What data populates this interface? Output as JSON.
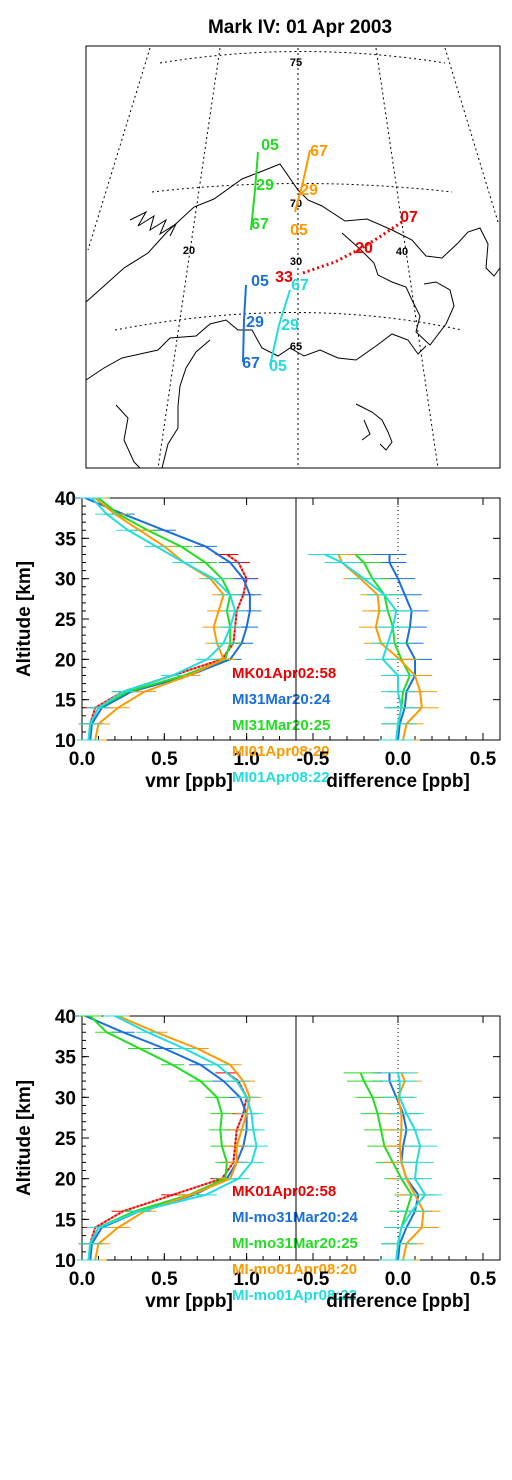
{
  "map": {
    "title": "Mark IV: 01 Apr 2003",
    "grid_labels": [
      "75",
      "70",
      "65",
      "20",
      "30",
      "40"
    ],
    "tracks": [
      {
        "color": "#22dd22",
        "labels": [
          "05",
          "29",
          "67"
        ]
      },
      {
        "color": "#ff9900",
        "labels": [
          "67",
          "29",
          "05"
        ]
      },
      {
        "color": "#ee0000",
        "labels": [
          "07",
          "20",
          "33"
        ]
      },
      {
        "color": "#1a6fdd",
        "labels": [
          "05",
          "29",
          "67"
        ]
      },
      {
        "color": "#22dddd",
        "labels": [
          "67",
          "29",
          "05"
        ]
      }
    ]
  },
  "chart_data": [
    {
      "type": "line",
      "panel": "vmr",
      "xlabel": "vmr [ppb]",
      "ylabel": "Altitude [km]",
      "xlim": [
        0.0,
        1.3
      ],
      "ylim": [
        10,
        40
      ],
      "xticks": [
        "0.0",
        "0.5",
        "1.0"
      ],
      "yticks": [
        "10",
        "15",
        "20",
        "25",
        "30",
        "35",
        "40"
      ],
      "altitude": [
        10,
        12,
        14,
        16,
        18,
        20,
        22,
        24,
        26,
        28,
        30,
        32,
        34,
        36,
        38,
        40
      ],
      "legend": [
        "MK01Apr02:58",
        "MI31Mar20:24",
        "MI31Mar20:25",
        "MI01Apr08:20",
        "MI01Apr08:22"
      ],
      "series": [
        {
          "name": "MK01Apr02:58",
          "color": "#ee0000",
          "altitude": [
            10,
            12,
            14,
            16,
            18,
            20,
            22,
            24,
            26,
            28,
            30,
            32,
            33
          ],
          "values": [
            0.05,
            0.05,
            0.08,
            0.25,
            0.55,
            0.85,
            0.92,
            0.93,
            0.94,
            0.98,
            1.0,
            0.95,
            0.88
          ]
        },
        {
          "name": "MI31Mar20:24",
          "color": "#1a6fdd",
          "altitude": [
            10,
            12,
            14,
            16,
            18,
            20,
            22,
            24,
            26,
            28,
            30,
            32,
            34,
            36,
            38,
            40
          ],
          "values": [
            0.05,
            0.06,
            0.12,
            0.3,
            0.65,
            0.9,
            0.97,
            1.0,
            1.02,
            1.02,
            0.98,
            0.9,
            0.75,
            0.5,
            0.25,
            0.02
          ]
        },
        {
          "name": "MI31Mar20:25",
          "color": "#22dd22",
          "altitude": [
            10,
            12,
            14,
            16,
            18,
            20,
            22,
            24,
            26,
            28,
            30,
            32,
            34,
            36,
            38,
            40
          ],
          "values": [
            0.04,
            0.05,
            0.1,
            0.28,
            0.62,
            0.87,
            0.9,
            0.9,
            0.88,
            0.9,
            0.85,
            0.75,
            0.6,
            0.4,
            0.22,
            0.1
          ]
        },
        {
          "name": "MI01Apr08:20",
          "color": "#ff9900",
          "altitude": [
            10,
            12,
            14,
            16,
            18,
            20,
            22,
            24,
            26,
            28,
            30,
            32,
            34,
            36,
            38,
            40
          ],
          "values": [
            0.08,
            0.1,
            0.22,
            0.38,
            0.65,
            0.86,
            0.82,
            0.8,
            0.83,
            0.86,
            0.78,
            0.62,
            0.5,
            0.35,
            0.2,
            0.08
          ]
        },
        {
          "name": "MI01Apr08:22",
          "color": "#22dddd",
          "altitude": [
            10,
            12,
            14,
            16,
            18,
            20,
            22,
            24,
            26,
            28,
            30,
            32,
            34,
            36,
            38,
            40
          ],
          "values": [
            0.04,
            0.05,
            0.1,
            0.25,
            0.55,
            0.76,
            0.86,
            0.9,
            0.93,
            0.9,
            0.8,
            0.62,
            0.45,
            0.28,
            0.15,
            0.06
          ]
        }
      ]
    },
    {
      "type": "line",
      "panel": "difference",
      "xlabel": "difference [ppb]",
      "xlim": [
        -0.6,
        0.6
      ],
      "ylim": [
        10,
        40
      ],
      "xticks": [
        "-0.5",
        "0.0",
        "0.5"
      ],
      "altitude": [
        10,
        12,
        14,
        16,
        18,
        20,
        22,
        24,
        26,
        28,
        30,
        32,
        33
      ],
      "series": [
        {
          "name": "MI31Mar20:24",
          "color": "#1a6fdd",
          "values": [
            0.0,
            0.01,
            0.04,
            0.05,
            0.1,
            0.1,
            0.05,
            0.07,
            0.08,
            0.04,
            0.0,
            -0.05,
            -0.05
          ]
        },
        {
          "name": "MI31Mar20:25",
          "color": "#22dd22",
          "values": [
            -0.01,
            0.0,
            0.02,
            0.03,
            0.07,
            0.02,
            -0.02,
            -0.03,
            -0.06,
            -0.08,
            -0.15,
            -0.2,
            -0.25
          ]
        },
        {
          "name": "MI01Apr08:20",
          "color": "#ff9900",
          "values": [
            0.03,
            0.05,
            0.14,
            0.13,
            0.1,
            0.01,
            -0.1,
            -0.13,
            -0.11,
            -0.12,
            -0.22,
            -0.33,
            -0.35
          ]
        },
        {
          "name": "MI01Apr08:22",
          "color": "#22dddd",
          "values": [
            -0.01,
            0.0,
            0.02,
            0.0,
            0.0,
            -0.09,
            -0.06,
            -0.03,
            -0.01,
            -0.08,
            -0.2,
            -0.33,
            -0.43
          ]
        }
      ]
    },
    {
      "type": "line",
      "panel": "vmr",
      "xlabel": "vmr [ppb]",
      "ylabel": "Altitude [km]",
      "xlim": [
        0.0,
        1.3
      ],
      "ylim": [
        10,
        40
      ],
      "xticks": [
        "0.0",
        "0.5",
        "1.0"
      ],
      "yticks": [
        "10",
        "15",
        "20",
        "25",
        "30",
        "35",
        "40"
      ],
      "legend": [
        "MK01Apr02:58",
        "MI-mo31Mar20:24",
        "MI-mo31Mar20:25",
        "MI-mo01Apr08:20",
        "MI-mo01Apr08:22"
      ],
      "series": [
        {
          "name": "MK01Apr02:58",
          "color": "#ee0000",
          "altitude": [
            10,
            12,
            14,
            16,
            18,
            20,
            22,
            24,
            26,
            28,
            30,
            32,
            33
          ],
          "values": [
            0.05,
            0.05,
            0.08,
            0.25,
            0.55,
            0.85,
            0.92,
            0.93,
            0.94,
            0.98,
            1.0,
            0.95,
            0.88
          ]
        },
        {
          "name": "MI-mo31Mar20:24",
          "color": "#1a6fdd",
          "altitude": [
            10,
            12,
            14,
            16,
            18,
            20,
            22,
            24,
            26,
            28,
            30,
            32,
            34,
            36,
            38,
            40
          ],
          "values": [
            0.05,
            0.06,
            0.12,
            0.35,
            0.68,
            0.88,
            0.94,
            0.98,
            1.0,
            1.0,
            0.96,
            0.86,
            0.72,
            0.5,
            0.25,
            0.02
          ]
        },
        {
          "name": "MI-mo31Mar20:25",
          "color": "#22dd22",
          "altitude": [
            10,
            12,
            14,
            16,
            18,
            20,
            22,
            24,
            26,
            28,
            30,
            32,
            34,
            36,
            38,
            40
          ],
          "values": [
            0.04,
            0.05,
            0.1,
            0.32,
            0.65,
            0.87,
            0.88,
            0.85,
            0.84,
            0.85,
            0.82,
            0.72,
            0.55,
            0.35,
            0.15,
            0.05
          ]
        },
        {
          "name": "MI-mo01Apr08:20",
          "color": "#ff9900",
          "altitude": [
            10,
            12,
            14,
            16,
            18,
            20,
            22,
            24,
            26,
            28,
            30,
            32,
            34,
            36,
            38,
            40
          ],
          "values": [
            0.08,
            0.1,
            0.22,
            0.38,
            0.66,
            0.9,
            0.94,
            0.94,
            0.97,
            1.0,
            1.02,
            0.98,
            0.9,
            0.7,
            0.45,
            0.22
          ]
        },
        {
          "name": "MI-mo01Apr08:22",
          "color": "#22dddd",
          "altitude": [
            10,
            12,
            14,
            16,
            18,
            20,
            22,
            24,
            26,
            28,
            30,
            32,
            34,
            36,
            38,
            40
          ],
          "values": [
            0.04,
            0.05,
            0.1,
            0.35,
            0.75,
            0.95,
            1.03,
            1.06,
            1.04,
            1.03,
            1.0,
            0.94,
            0.82,
            0.62,
            0.4,
            0.2
          ]
        }
      ]
    },
    {
      "type": "line",
      "panel": "difference",
      "xlabel": "difference [ppb]",
      "xlim": [
        -0.6,
        0.6
      ],
      "ylim": [
        10,
        40
      ],
      "xticks": [
        "-0.5",
        "0.0",
        "0.5"
      ],
      "altitude": [
        10,
        12,
        14,
        16,
        18,
        20,
        22,
        24,
        26,
        28,
        30,
        32,
        33
      ],
      "series": [
        {
          "name": "MI-mo31Mar20:24",
          "color": "#1a6fdd",
          "values": [
            0.0,
            0.01,
            0.05,
            0.1,
            0.12,
            0.05,
            0.02,
            0.03,
            0.05,
            0.03,
            -0.01,
            -0.05,
            -0.05
          ]
        },
        {
          "name": "MI-mo31Mar20:25",
          "color": "#22dd22",
          "values": [
            -0.01,
            0.0,
            0.02,
            0.05,
            0.08,
            0.02,
            -0.03,
            -0.08,
            -0.1,
            -0.12,
            -0.15,
            -0.2,
            -0.22
          ]
        },
        {
          "name": "MI-mo01Apr08:20",
          "color": "#ff9900",
          "values": [
            0.03,
            0.05,
            0.14,
            0.15,
            0.1,
            0.05,
            0.02,
            0.01,
            0.02,
            0.02,
            0.0,
            0.04,
            0.02
          ]
        },
        {
          "name": "MI-mo01Apr08:22",
          "color": "#22dddd",
          "values": [
            -0.01,
            0.0,
            0.02,
            0.08,
            0.16,
            0.1,
            0.11,
            0.13,
            0.1,
            0.05,
            0.01,
            0.01,
            0.0
          ]
        }
      ]
    }
  ]
}
